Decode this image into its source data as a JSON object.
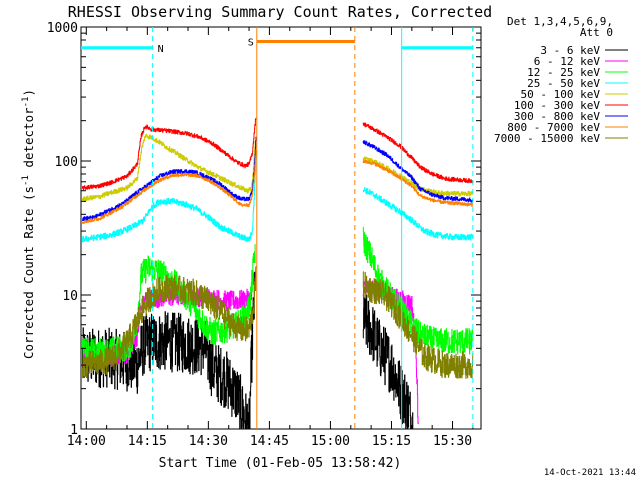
{
  "chart_data": {
    "type": "line",
    "title": "RHESSI Observing Summary Count Rates, Corrected",
    "xlabel": "Start Time (01-Feb-05 13:58:42)",
    "ylabel_main": "Corrected Count Rate (s",
    "ylabel_sup1": "-1",
    "ylabel_mid": " detector",
    "ylabel_sup2": "-1",
    "ylabel_end": ")",
    "yscale": "log",
    "xlim_minutes": [
      -1.3,
      97.0
    ],
    "ylim": [
      1,
      1000
    ],
    "x_ticks": [
      {
        "label": "14:00",
        "minutes": 0
      },
      {
        "label": "14:15",
        "minutes": 15
      },
      {
        "label": "14:30",
        "minutes": 30
      },
      {
        "label": "14:45",
        "minutes": 45
      },
      {
        "label": "15:00",
        "minutes": 60
      },
      {
        "label": "15:15",
        "minutes": 75
      },
      {
        "label": "15:30",
        "minutes": 90
      }
    ],
    "y_ticks": [
      {
        "label": "1",
        "value": 1
      },
      {
        "label": "10",
        "value": 10
      },
      {
        "label": "100",
        "value": 100
      },
      {
        "label": "1000",
        "value": 1000
      }
    ],
    "legend_header": [
      "Det 1,3,4,5,6,9,",
      "Att 0"
    ],
    "legend_position": "right",
    "timestamp": "14-Oct-2021 13:44",
    "flags": [
      {
        "label": "N",
        "color": "#00ffff",
        "start": -1.3,
        "end": 16.3,
        "level": 700,
        "dashed_at": 16.3,
        "solid_at": null
      },
      {
        "label": "S",
        "color": "#ff7f00",
        "start": 41.9,
        "end": 66.0,
        "level": 780,
        "dashed_at": 66.0,
        "solid_at": 41.9
      },
      {
        "label": "",
        "color": "#00ffff",
        "start": 77.5,
        "end": 95.0,
        "level": 700,
        "dashed_at": 95.0,
        "solid_at": 77.5
      }
    ],
    "series": [
      {
        "name": "3 - 6 keV",
        "color": "#000000",
        "noise": 0.45,
        "points": [
          [
            -1.0,
            3.4
          ],
          [
            5.0,
            3.4
          ],
          [
            10.0,
            3.2
          ],
          [
            12.5,
            3.0
          ],
          [
            14.0,
            4.2
          ],
          [
            16.0,
            4.5
          ],
          [
            20.0,
            4.5
          ],
          [
            25.0,
            4.3
          ],
          [
            29.0,
            4.1
          ],
          [
            31.0,
            2.8
          ],
          [
            34.0,
            2.4
          ],
          [
            37.0,
            1.8
          ],
          [
            39.0,
            1.2
          ],
          [
            40.0,
            1.0
          ],
          [
            40.8,
            5.0
          ],
          [
            41.5,
            12.0
          ]
        ],
        "points_b": [
          [
            68.0,
            6.5
          ],
          [
            70.0,
            5.5
          ],
          [
            72.0,
            4.0
          ],
          [
            75.0,
            3.0
          ],
          [
            77.0,
            2.0
          ],
          [
            79.0,
            1.5
          ],
          [
            80.3,
            1.0
          ]
        ]
      },
      {
        "name": "6 - 12 keV",
        "color": "#ff00ff",
        "noise": 0.15,
        "points": [
          [
            -1.0,
            3.5
          ],
          [
            5.0,
            3.5
          ],
          [
            10.0,
            3.6
          ],
          [
            12.5,
            5.0
          ],
          [
            13.3,
            7.5
          ],
          [
            14.5,
            9.3
          ],
          [
            20.0,
            9.7
          ],
          [
            25.0,
            10.0
          ],
          [
            30.0,
            9.5
          ],
          [
            35.0,
            9.0
          ],
          [
            39.0,
            9.2
          ],
          [
            40.5,
            9.5
          ],
          [
            41.2,
            14.0
          ]
        ],
        "points_b": [
          [
            68.0,
            11.5
          ],
          [
            70.0,
            11.0
          ],
          [
            73.0,
            10.0
          ],
          [
            76.0,
            9.5
          ],
          [
            78.0,
            9.0
          ],
          [
            80.0,
            8.5
          ],
          [
            81.0,
            4.0
          ],
          [
            81.6,
            1.0
          ]
        ]
      },
      {
        "name": "12 - 25 keV",
        "color": "#00ff00",
        "noise": 0.2,
        "points": [
          [
            -1.0,
            3.8
          ],
          [
            5.0,
            3.8
          ],
          [
            9.0,
            4.0
          ],
          [
            11.0,
            4.3
          ],
          [
            12.5,
            6.5
          ],
          [
            13.5,
            14.0
          ],
          [
            15.0,
            16.0
          ],
          [
            18.0,
            15.0
          ],
          [
            22.0,
            12.0
          ],
          [
            26.0,
            8.5
          ],
          [
            29.0,
            6.0
          ],
          [
            31.0,
            5.2
          ],
          [
            34.0,
            5.5
          ],
          [
            37.0,
            6.0
          ],
          [
            39.0,
            7.0
          ],
          [
            40.2,
            8.5
          ],
          [
            41.0,
            16.0
          ],
          [
            41.5,
            22.0
          ]
        ],
        "points_b": [
          [
            68.0,
            26.0
          ],
          [
            70.0,
            19.0
          ],
          [
            72.0,
            13.0
          ],
          [
            75.0,
            9.5
          ],
          [
            77.0,
            8.0
          ],
          [
            79.0,
            6.5
          ],
          [
            82.0,
            5.0
          ],
          [
            86.0,
            4.5
          ],
          [
            95.0,
            4.5
          ]
        ]
      },
      {
        "name": "25 - 50 keV",
        "color": "#00ffff",
        "noise": 0.045,
        "points": [
          [
            -1.0,
            26.0
          ],
          [
            3.0,
            27.0
          ],
          [
            6.0,
            28.0
          ],
          [
            9.0,
            30.0
          ],
          [
            12.0,
            33.0
          ],
          [
            14.0,
            36.0
          ],
          [
            16.0,
            45.0
          ],
          [
            18.0,
            50.0
          ],
          [
            21.0,
            50.0
          ],
          [
            24.0,
            48.0
          ],
          [
            27.0,
            44.0
          ],
          [
            30.0,
            38.0
          ],
          [
            33.0,
            32.0
          ],
          [
            36.0,
            29.0
          ],
          [
            38.0,
            27.0
          ],
          [
            40.0,
            26.0
          ],
          [
            40.8,
            30.0
          ],
          [
            41.3,
            60.0
          ],
          [
            41.7,
            110.0
          ]
        ],
        "points_b": [
          [
            68.0,
            62.0
          ],
          [
            71.0,
            55.0
          ],
          [
            74.0,
            48.0
          ],
          [
            77.0,
            42.0
          ],
          [
            80.0,
            36.0
          ],
          [
            83.0,
            30.0
          ],
          [
            86.0,
            28.0
          ],
          [
            90.0,
            27.0
          ],
          [
            95.0,
            27.0
          ]
        ]
      },
      {
        "name": "50 - 100 keV",
        "color": "#cccc00",
        "noise": 0.035,
        "points": [
          [
            -1.0,
            52.0
          ],
          [
            3.0,
            54.0
          ],
          [
            6.0,
            58.0
          ],
          [
            10.0,
            63.0
          ],
          [
            12.5,
            74.0
          ],
          [
            13.5,
            120.0
          ],
          [
            14.5,
            155.0
          ],
          [
            16.0,
            150.0
          ],
          [
            18.0,
            138.0
          ],
          [
            20.0,
            125.0
          ],
          [
            22.0,
            115.0
          ],
          [
            25.0,
            100.0
          ],
          [
            28.0,
            88.0
          ],
          [
            31.0,
            80.0
          ],
          [
            34.0,
            72.0
          ],
          [
            37.0,
            65.0
          ],
          [
            39.5,
            60.0
          ],
          [
            40.5,
            62.0
          ],
          [
            41.0,
            80.0
          ],
          [
            41.5,
            140.0
          ]
        ],
        "points_b": [
          [
            68.0,
            105.0
          ],
          [
            71.0,
            98.0
          ],
          [
            74.0,
            88.0
          ],
          [
            77.0,
            78.0
          ],
          [
            80.0,
            68.0
          ],
          [
            82.0,
            62.0
          ],
          [
            86.0,
            58.0
          ],
          [
            90.0,
            57.0
          ],
          [
            95.0,
            57.0
          ]
        ]
      },
      {
        "name": "100 - 300 keV",
        "color": "#ff0000",
        "noise": 0.03,
        "points": [
          [
            -1.0,
            63.0
          ],
          [
            3.0,
            65.0
          ],
          [
            6.0,
            69.0
          ],
          [
            10.0,
            77.0
          ],
          [
            12.5,
            95.0
          ],
          [
            13.5,
            155.0
          ],
          [
            14.5,
            182.0
          ],
          [
            16.0,
            172.0
          ],
          [
            20.0,
            168.0
          ],
          [
            25.0,
            160.0
          ],
          [
            28.0,
            150.0
          ],
          [
            31.0,
            135.0
          ],
          [
            34.0,
            115.0
          ],
          [
            37.0,
            98.0
          ],
          [
            39.0,
            92.0
          ],
          [
            40.0,
            95.0
          ],
          [
            40.8,
            115.0
          ],
          [
            41.3,
            170.0
          ],
          [
            41.7,
            215.0
          ]
        ],
        "points_b": [
          [
            68.0,
            190.0
          ],
          [
            71.0,
            170.0
          ],
          [
            74.0,
            150.0
          ],
          [
            77.0,
            130.0
          ],
          [
            80.0,
            105.0
          ],
          [
            82.0,
            90.0
          ],
          [
            85.0,
            80.0
          ],
          [
            88.0,
            74.0
          ],
          [
            92.0,
            72.0
          ],
          [
            95.0,
            71.0
          ]
        ]
      },
      {
        "name": "300 - 800 keV",
        "color": "#0000ff",
        "noise": 0.03,
        "points": [
          [
            -1.0,
            37.0
          ],
          [
            2.0,
            38.0
          ],
          [
            5.0,
            42.0
          ],
          [
            9.0,
            48.0
          ],
          [
            12.0,
            57.0
          ],
          [
            15.0,
            66.0
          ],
          [
            18.0,
            77.0
          ],
          [
            21.0,
            83.0
          ],
          [
            24.0,
            84.0
          ],
          [
            27.0,
            82.0
          ],
          [
            30.0,
            75.0
          ],
          [
            33.0,
            67.0
          ],
          [
            36.0,
            56.0
          ],
          [
            38.0,
            52.0
          ],
          [
            40.0,
            52.0
          ],
          [
            40.8,
            60.0
          ],
          [
            41.3,
            90.0
          ],
          [
            41.7,
            150.0
          ]
        ],
        "points_b": [
          [
            68.0,
            140.0
          ],
          [
            71.0,
            125.0
          ],
          [
            74.0,
            110.0
          ],
          [
            77.0,
            90.0
          ],
          [
            80.0,
            75.0
          ],
          [
            82.0,
            62.0
          ],
          [
            85.0,
            56.0
          ],
          [
            88.0,
            53.0
          ],
          [
            92.0,
            52.0
          ],
          [
            95.0,
            51.0
          ]
        ]
      },
      {
        "name": "800 - 7000 keV",
        "color": "#ff7f00",
        "noise": 0.025,
        "points": [
          [
            -1.0,
            35.0
          ],
          [
            3.0,
            37.0
          ],
          [
            6.0,
            41.0
          ],
          [
            9.0,
            46.0
          ],
          [
            12.0,
            54.0
          ],
          [
            15.0,
            63.0
          ],
          [
            18.0,
            72.0
          ],
          [
            21.0,
            78.0
          ],
          [
            24.0,
            79.0
          ],
          [
            27.0,
            78.0
          ],
          [
            30.0,
            72.0
          ],
          [
            33.0,
            63.0
          ],
          [
            36.0,
            53.0
          ],
          [
            38.0,
            47.0
          ],
          [
            40.0,
            47.0
          ],
          [
            40.8,
            55.0
          ],
          [
            41.3,
            80.0
          ],
          [
            41.7,
            120.0
          ]
        ],
        "points_b": [
          [
            68.0,
            100.0
          ],
          [
            71.0,
            95.0
          ],
          [
            74.0,
            85.0
          ],
          [
            77.0,
            75.0
          ],
          [
            80.0,
            65.0
          ],
          [
            82.0,
            55.0
          ],
          [
            85.0,
            51.0
          ],
          [
            88.0,
            49.0
          ],
          [
            92.0,
            48.0
          ],
          [
            95.0,
            47.0
          ]
        ]
      },
      {
        "name": "7000 - 15000 keV",
        "color": "#808000",
        "noise": 0.2,
        "points": [
          [
            -1.0,
            3.0
          ],
          [
            3.0,
            3.1
          ],
          [
            6.0,
            3.3
          ],
          [
            9.0,
            4.0
          ],
          [
            11.0,
            5.0
          ],
          [
            13.0,
            7.0
          ],
          [
            15.0,
            9.0
          ],
          [
            17.0,
            10.5
          ],
          [
            20.0,
            11.5
          ],
          [
            23.0,
            11.0
          ],
          [
            26.0,
            10.5
          ],
          [
            28.0,
            10.0
          ],
          [
            30.0,
            9.0
          ],
          [
            33.0,
            7.5
          ],
          [
            36.0,
            6.0
          ],
          [
            38.0,
            5.5
          ],
          [
            40.0,
            5.5
          ],
          [
            41.0,
            8.0
          ],
          [
            41.7,
            14.0
          ]
        ],
        "points_b": [
          [
            68.0,
            12.0
          ],
          [
            70.0,
            11.0
          ],
          [
            72.0,
            10.5
          ],
          [
            74.0,
            9.5
          ],
          [
            77.0,
            7.0
          ],
          [
            80.0,
            5.0
          ],
          [
            83.0,
            3.5
          ],
          [
            88.0,
            3.0
          ],
          [
            95.0,
            3.0
          ]
        ]
      }
    ]
  }
}
